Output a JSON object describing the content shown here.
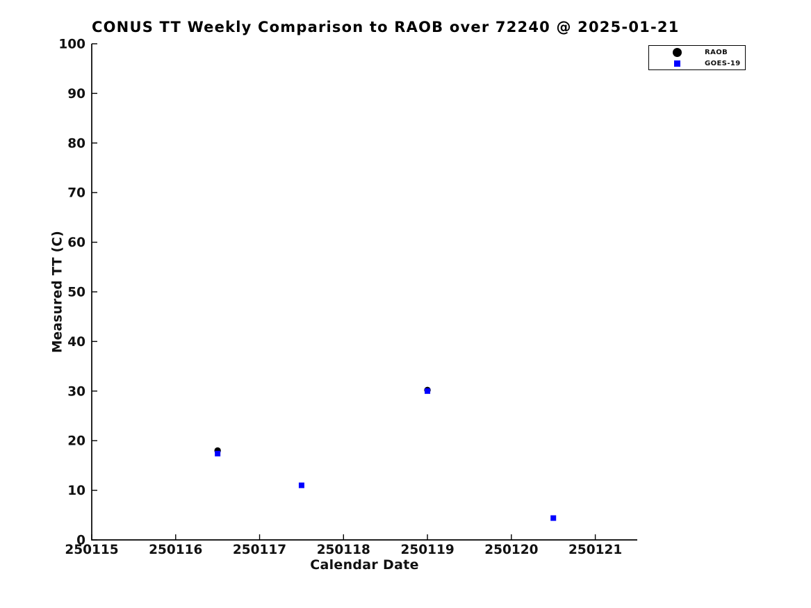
{
  "figure": {
    "background": "#ffffff",
    "text_color": "#111111",
    "axis_color": "#000000"
  },
  "chart_data": {
    "type": "scatter",
    "title": "CONUS TT Weekly Comparison to RAOB over 72240 @ 2025-01-21",
    "xlabel": "Calendar Date",
    "ylabel": "Measured TT (C)",
    "xlim": [
      250115,
      250121.5
    ],
    "ylim": [
      0,
      100
    ],
    "xticks": [
      250115,
      250116,
      250117,
      250118,
      250119,
      250120,
      250121
    ],
    "yticks": [
      0,
      10,
      20,
      30,
      40,
      50,
      60,
      70,
      80,
      90,
      100
    ],
    "grid": false,
    "spines": [
      "left",
      "bottom"
    ],
    "tick_direction": "in",
    "legend_position": "top-right-outside",
    "series": [
      {
        "name": "RAOB",
        "marker": "circle",
        "color": "#000000",
        "marker_size": 9.4,
        "points": [
          [
            250116.5,
            18.0
          ],
          [
            250119.0,
            30.2
          ]
        ]
      },
      {
        "name": "GOES-19",
        "marker": "square",
        "color": "#0000ff",
        "marker_size": 8,
        "points": [
          [
            250116.5,
            17.4
          ],
          [
            250117.5,
            11.0
          ],
          [
            250119.0,
            30.0
          ],
          [
            250120.5,
            4.4
          ]
        ]
      }
    ]
  }
}
